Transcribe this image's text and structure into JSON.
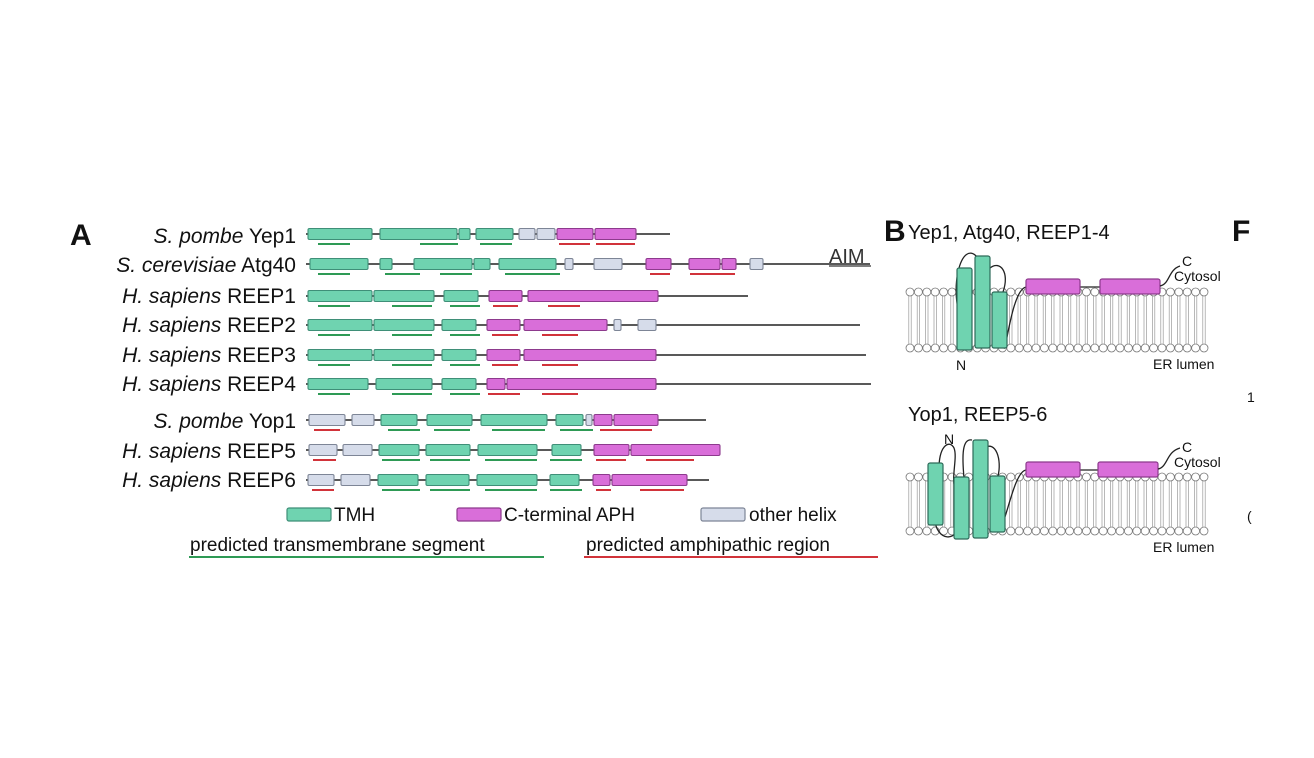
{
  "panel_a": {
    "letter": "A",
    "proteins": [
      {
        "species": "S. pombe",
        "name": "Yep1"
      },
      {
        "species": "S. cerevisiae",
        "name": "Atg40"
      },
      {
        "species": "H. sapiens",
        "name": "REEP1"
      },
      {
        "species": "H. sapiens",
        "name": "REEP2"
      },
      {
        "species": "H. sapiens",
        "name": "REEP3"
      },
      {
        "species": "H. sapiens",
        "name": "REEP4"
      },
      {
        "species": "S. pombe",
        "name": "Yop1"
      },
      {
        "species": "H. sapiens",
        "name": "REEP5"
      },
      {
        "species": "H. sapiens",
        "name": "REEP6"
      }
    ],
    "aim_label": "AIM",
    "legend": {
      "tmh": "TMH",
      "aph": "C-terminal APH",
      "other": "other helix",
      "tm_segment": "predicted transmembrane segment",
      "amphipathic": "predicted amphipathic region"
    }
  },
  "panel_b": {
    "letter": "B",
    "top_title": "Yep1, Atg40, REEP1-4",
    "bottom_title": "Yop1, REEP5-6",
    "n_label": "N",
    "c_label": "C",
    "cytosol_label": "Cytosol",
    "lumen_label": "ER lumen"
  },
  "panel_f": {
    "letter": "F",
    "edge_mark_1": "1",
    "edge_mark_2": "("
  },
  "colors": {
    "tmh": "#6fd3b0",
    "aph": "#d96ed9",
    "other": "#d6dcea",
    "tm_underline": "#2e9a55",
    "amphipathic_underline": "#d1333a",
    "membrane": "#999999"
  }
}
